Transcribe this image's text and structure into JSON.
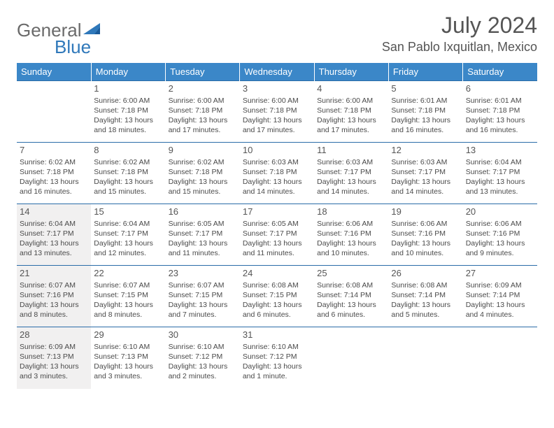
{
  "brand": {
    "part1": "General",
    "part2": "Blue"
  },
  "title": "July 2024",
  "location": "San Pablo Ixquitlan, Mexico",
  "colors": {
    "header_bg": "#3b87c8",
    "header_text": "#ffffff",
    "border": "#2a6ca8",
    "shaded": "#f1f0f0",
    "body_text": "#4a4a4a",
    "title_text": "#555555"
  },
  "daysOfWeek": [
    "Sunday",
    "Monday",
    "Tuesday",
    "Wednesday",
    "Thursday",
    "Friday",
    "Saturday"
  ],
  "weeks": [
    [
      null,
      {
        "num": "1",
        "sunrise": "6:00 AM",
        "sunset": "7:18 PM",
        "daylight": "13 hours and 18 minutes."
      },
      {
        "num": "2",
        "sunrise": "6:00 AM",
        "sunset": "7:18 PM",
        "daylight": "13 hours and 17 minutes."
      },
      {
        "num": "3",
        "sunrise": "6:00 AM",
        "sunset": "7:18 PM",
        "daylight": "13 hours and 17 minutes."
      },
      {
        "num": "4",
        "sunrise": "6:00 AM",
        "sunset": "7:18 PM",
        "daylight": "13 hours and 17 minutes."
      },
      {
        "num": "5",
        "sunrise": "6:01 AM",
        "sunset": "7:18 PM",
        "daylight": "13 hours and 16 minutes."
      },
      {
        "num": "6",
        "sunrise": "6:01 AM",
        "sunset": "7:18 PM",
        "daylight": "13 hours and 16 minutes."
      }
    ],
    [
      {
        "num": "7",
        "sunrise": "6:02 AM",
        "sunset": "7:18 PM",
        "daylight": "13 hours and 16 minutes."
      },
      {
        "num": "8",
        "sunrise": "6:02 AM",
        "sunset": "7:18 PM",
        "daylight": "13 hours and 15 minutes."
      },
      {
        "num": "9",
        "sunrise": "6:02 AM",
        "sunset": "7:18 PM",
        "daylight": "13 hours and 15 minutes."
      },
      {
        "num": "10",
        "sunrise": "6:03 AM",
        "sunset": "7:18 PM",
        "daylight": "13 hours and 14 minutes."
      },
      {
        "num": "11",
        "sunrise": "6:03 AM",
        "sunset": "7:17 PM",
        "daylight": "13 hours and 14 minutes."
      },
      {
        "num": "12",
        "sunrise": "6:03 AM",
        "sunset": "7:17 PM",
        "daylight": "13 hours and 14 minutes."
      },
      {
        "num": "13",
        "sunrise": "6:04 AM",
        "sunset": "7:17 PM",
        "daylight": "13 hours and 13 minutes."
      }
    ],
    [
      {
        "num": "14",
        "sunrise": "6:04 AM",
        "sunset": "7:17 PM",
        "daylight": "13 hours and 13 minutes.",
        "shaded": true
      },
      {
        "num": "15",
        "sunrise": "6:04 AM",
        "sunset": "7:17 PM",
        "daylight": "13 hours and 12 minutes."
      },
      {
        "num": "16",
        "sunrise": "6:05 AM",
        "sunset": "7:17 PM",
        "daylight": "13 hours and 11 minutes."
      },
      {
        "num": "17",
        "sunrise": "6:05 AM",
        "sunset": "7:17 PM",
        "daylight": "13 hours and 11 minutes."
      },
      {
        "num": "18",
        "sunrise": "6:06 AM",
        "sunset": "7:16 PM",
        "daylight": "13 hours and 10 minutes."
      },
      {
        "num": "19",
        "sunrise": "6:06 AM",
        "sunset": "7:16 PM",
        "daylight": "13 hours and 10 minutes."
      },
      {
        "num": "20",
        "sunrise": "6:06 AM",
        "sunset": "7:16 PM",
        "daylight": "13 hours and 9 minutes."
      }
    ],
    [
      {
        "num": "21",
        "sunrise": "6:07 AM",
        "sunset": "7:16 PM",
        "daylight": "13 hours and 8 minutes.",
        "shaded": true
      },
      {
        "num": "22",
        "sunrise": "6:07 AM",
        "sunset": "7:15 PM",
        "daylight": "13 hours and 8 minutes."
      },
      {
        "num": "23",
        "sunrise": "6:07 AM",
        "sunset": "7:15 PM",
        "daylight": "13 hours and 7 minutes."
      },
      {
        "num": "24",
        "sunrise": "6:08 AM",
        "sunset": "7:15 PM",
        "daylight": "13 hours and 6 minutes."
      },
      {
        "num": "25",
        "sunrise": "6:08 AM",
        "sunset": "7:14 PM",
        "daylight": "13 hours and 6 minutes."
      },
      {
        "num": "26",
        "sunrise": "6:08 AM",
        "sunset": "7:14 PM",
        "daylight": "13 hours and 5 minutes."
      },
      {
        "num": "27",
        "sunrise": "6:09 AM",
        "sunset": "7:14 PM",
        "daylight": "13 hours and 4 minutes."
      }
    ],
    [
      {
        "num": "28",
        "sunrise": "6:09 AM",
        "sunset": "7:13 PM",
        "daylight": "13 hours and 3 minutes.",
        "shaded": true
      },
      {
        "num": "29",
        "sunrise": "6:10 AM",
        "sunset": "7:13 PM",
        "daylight": "13 hours and 3 minutes."
      },
      {
        "num": "30",
        "sunrise": "6:10 AM",
        "sunset": "7:12 PM",
        "daylight": "13 hours and 2 minutes."
      },
      {
        "num": "31",
        "sunrise": "6:10 AM",
        "sunset": "7:12 PM",
        "daylight": "13 hours and 1 minute."
      },
      null,
      null,
      null
    ]
  ],
  "labels": {
    "sunrise": "Sunrise:",
    "sunset": "Sunset:",
    "daylight": "Daylight:"
  }
}
